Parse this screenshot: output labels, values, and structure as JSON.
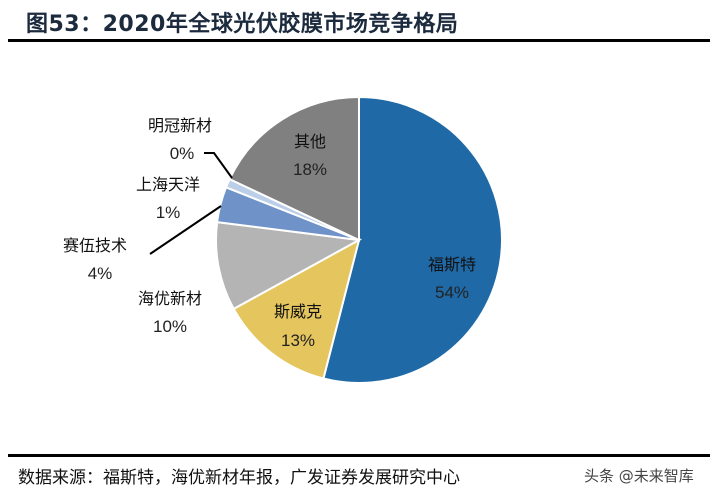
{
  "title": "图53：2020年全球光伏胶膜市场竞争格局",
  "source": "数据来源：福斯特，海优新材年报，广发证券发展研究中心",
  "watermark": "头条 @未来智库",
  "chart_data": {
    "type": "pie",
    "title": "图53：2020年全球光伏胶膜市场竞争格局",
    "start": "top",
    "direction": "clockwise",
    "slices": [
      {
        "name": "福斯特",
        "value": 54,
        "label": "54%",
        "color": "#1f69a6"
      },
      {
        "name": "斯威克",
        "value": 13,
        "label": "13%",
        "color": "#e5c55e"
      },
      {
        "name": "海优新材",
        "value": 10,
        "label": "10%",
        "color": "#b4b4b4"
      },
      {
        "name": "赛伍技术",
        "value": 4,
        "label": "4%",
        "color": "#6f93c9"
      },
      {
        "name": "上海天洋",
        "value": 1,
        "label": "1%",
        "color": "#bccfe8"
      },
      {
        "name": "明冠新材",
        "value": 0,
        "label": "0%",
        "color": "#d9d9d9"
      },
      {
        "name": "其他",
        "value": 18,
        "label": "18%",
        "color": "#808080"
      }
    ]
  }
}
